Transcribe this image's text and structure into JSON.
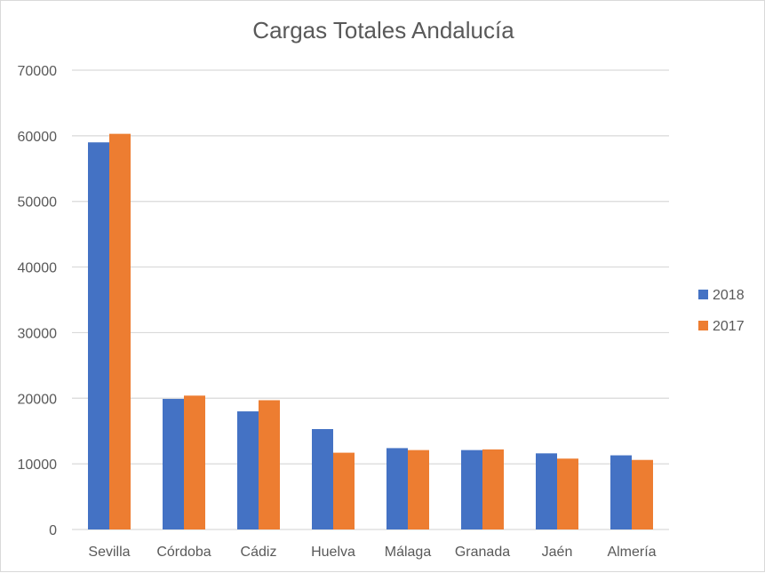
{
  "chart_data": {
    "type": "bar",
    "title": "Cargas Totales Andalucía",
    "categories": [
      "Sevilla",
      "Córdoba",
      "Cádiz",
      "Huelva",
      "Málaga",
      "Granada",
      "Jaén",
      "Almería"
    ],
    "series": [
      {
        "name": "2018",
        "color": "#4472c4",
        "values": [
          59000,
          19900,
          18000,
          15300,
          12400,
          12100,
          11600,
          11300
        ]
      },
      {
        "name": "2017",
        "color": "#ed7d31",
        "values": [
          60300,
          20400,
          19700,
          11700,
          12100,
          12200,
          10800,
          10600
        ]
      }
    ],
    "ylim": [
      0,
      70000
    ],
    "yticks": [
      0,
      10000,
      20000,
      30000,
      40000,
      50000,
      60000,
      70000
    ],
    "grid": true,
    "legend_position": "right"
  }
}
